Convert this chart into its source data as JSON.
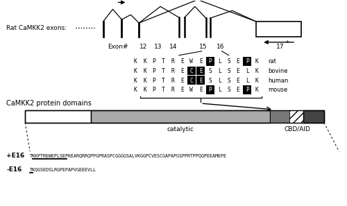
{
  "bg_color": "#ffffff",
  "exon_label": "Rat CaMKK2 exons:",
  "protein_domains_label": "CaMKK2 protein domains",
  "sequences": [
    {
      "label": "rat",
      "seq": [
        "K",
        "K",
        "P",
        "T",
        "R",
        "E",
        "W",
        "E",
        "P",
        "L",
        "S",
        "E",
        "P",
        "K"
      ],
      "highlighted": [
        8,
        12
      ]
    },
    {
      "label": "bovine",
      "seq": [
        "K",
        "K",
        "P",
        "T",
        "R",
        "E",
        "C",
        "E",
        "S",
        "L",
        "S",
        "E",
        "L",
        "K"
      ],
      "highlighted": [
        6,
        7
      ]
    },
    {
      "label": "human",
      "seq": [
        "K",
        "K",
        "P",
        "T",
        "R",
        "E",
        "C",
        "E",
        "S",
        "L",
        "S",
        "E",
        "L",
        "K"
      ],
      "highlighted": [
        6,
        7
      ]
    },
    {
      "label": "mouse",
      "seq": [
        "K",
        "K",
        "P",
        "T",
        "R",
        "E",
        "W",
        "E",
        "P",
        "L",
        "S",
        "E",
        "P",
        "K"
      ],
      "highlighted": [
        8,
        12
      ]
    }
  ],
  "plus_seq": "TKKPTREWEPLSEPKEARQRRQPPGPRASPCGGGG SALVKGGPCVESCGAPAPGSPPRTPPQQPEEAMEPE",
  "minus_seq": "TKQGSEDSLRGPEPAPVGEEEVLL"
}
